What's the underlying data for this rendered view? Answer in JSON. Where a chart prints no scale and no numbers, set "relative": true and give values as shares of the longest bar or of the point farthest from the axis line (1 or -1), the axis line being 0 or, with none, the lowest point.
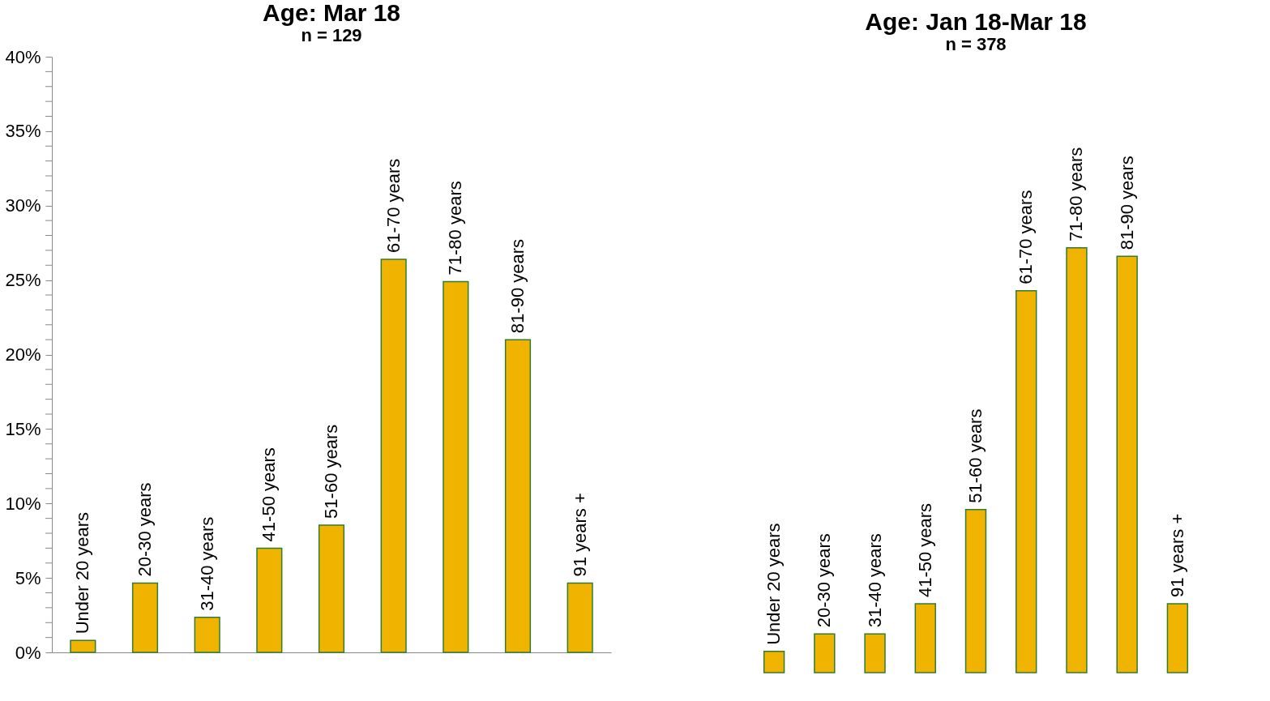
{
  "chart_data": [
    {
      "type": "bar",
      "title": "Age: Mar 18",
      "subtitle": "n = 129",
      "categories": [
        "Under 20 years",
        "20-30 years",
        "31-40 years",
        "41-50 years",
        "51-60 years",
        "61-70 years",
        "71-80 years",
        "81-90 years",
        "91 years +"
      ],
      "values": [
        0.8,
        4.65,
        2.35,
        7.0,
        8.55,
        26.4,
        24.9,
        21.0,
        4.65
      ],
      "color": "#f0b400",
      "ylim": [
        0,
        40
      ],
      "yticks": [
        {
          "value": 0,
          "label": "0%"
        },
        {
          "value": 1,
          "label": null
        },
        {
          "value": 2,
          "label": null
        },
        {
          "value": 3,
          "label": null
        },
        {
          "value": 4,
          "label": null
        },
        {
          "value": 5,
          "label": "5%"
        },
        {
          "value": 6,
          "label": null
        },
        {
          "value": 7,
          "label": null
        },
        {
          "value": 8,
          "label": null
        },
        {
          "value": 9,
          "label": null
        },
        {
          "value": 10,
          "label": "10%"
        },
        {
          "value": 11,
          "label": null
        },
        {
          "value": 12,
          "label": null
        },
        {
          "value": 13,
          "label": null
        },
        {
          "value": 14,
          "label": null
        },
        {
          "value": 15,
          "label": "15%"
        },
        {
          "value": 16,
          "label": null
        },
        {
          "value": 17,
          "label": null
        },
        {
          "value": 18,
          "label": null
        },
        {
          "value": 19,
          "label": null
        },
        {
          "value": 20,
          "label": "20%"
        },
        {
          "value": 21,
          "label": null
        },
        {
          "value": 22,
          "label": null
        },
        {
          "value": 23,
          "label": null
        },
        {
          "value": 24,
          "label": null
        },
        {
          "value": 25,
          "label": "25%"
        },
        {
          "value": 26,
          "label": null
        },
        {
          "value": 27,
          "label": null
        },
        {
          "value": 28,
          "label": null
        },
        {
          "value": 29,
          "label": null
        },
        {
          "value": 30,
          "label": "30%"
        },
        {
          "value": 31,
          "label": null
        },
        {
          "value": 32,
          "label": null
        },
        {
          "value": 33,
          "label": null
        },
        {
          "value": 34,
          "label": null
        },
        {
          "value": 35,
          "label": "35%"
        },
        {
          "value": 36,
          "label": null
        },
        {
          "value": 37,
          "label": null
        },
        {
          "value": 38,
          "label": null
        },
        {
          "value": 39,
          "label": null
        },
        {
          "value": 40,
          "label": "40%"
        }
      ],
      "tick_labels": "y",
      "grid": false,
      "legend": false
    },
    {
      "type": "bar",
      "title": "Age: Jan 18-Mar 18",
      "subtitle": "n = 378",
      "categories": [
        "Under 20 years",
        "20-30 years",
        "31-40 years",
        "41-50 years",
        "51-60 years",
        "61-70 years",
        "71-80 years",
        "81-90 years",
        "91 years +"
      ],
      "values": [
        0.05,
        0.091,
        0.091,
        0.162,
        0.384,
        0.899,
        1,
        0.98,
        0.162
      ],
      "color": "#f0b400",
      "relative": true,
      "tick_labels": false,
      "grid": false,
      "legend": false
    }
  ]
}
